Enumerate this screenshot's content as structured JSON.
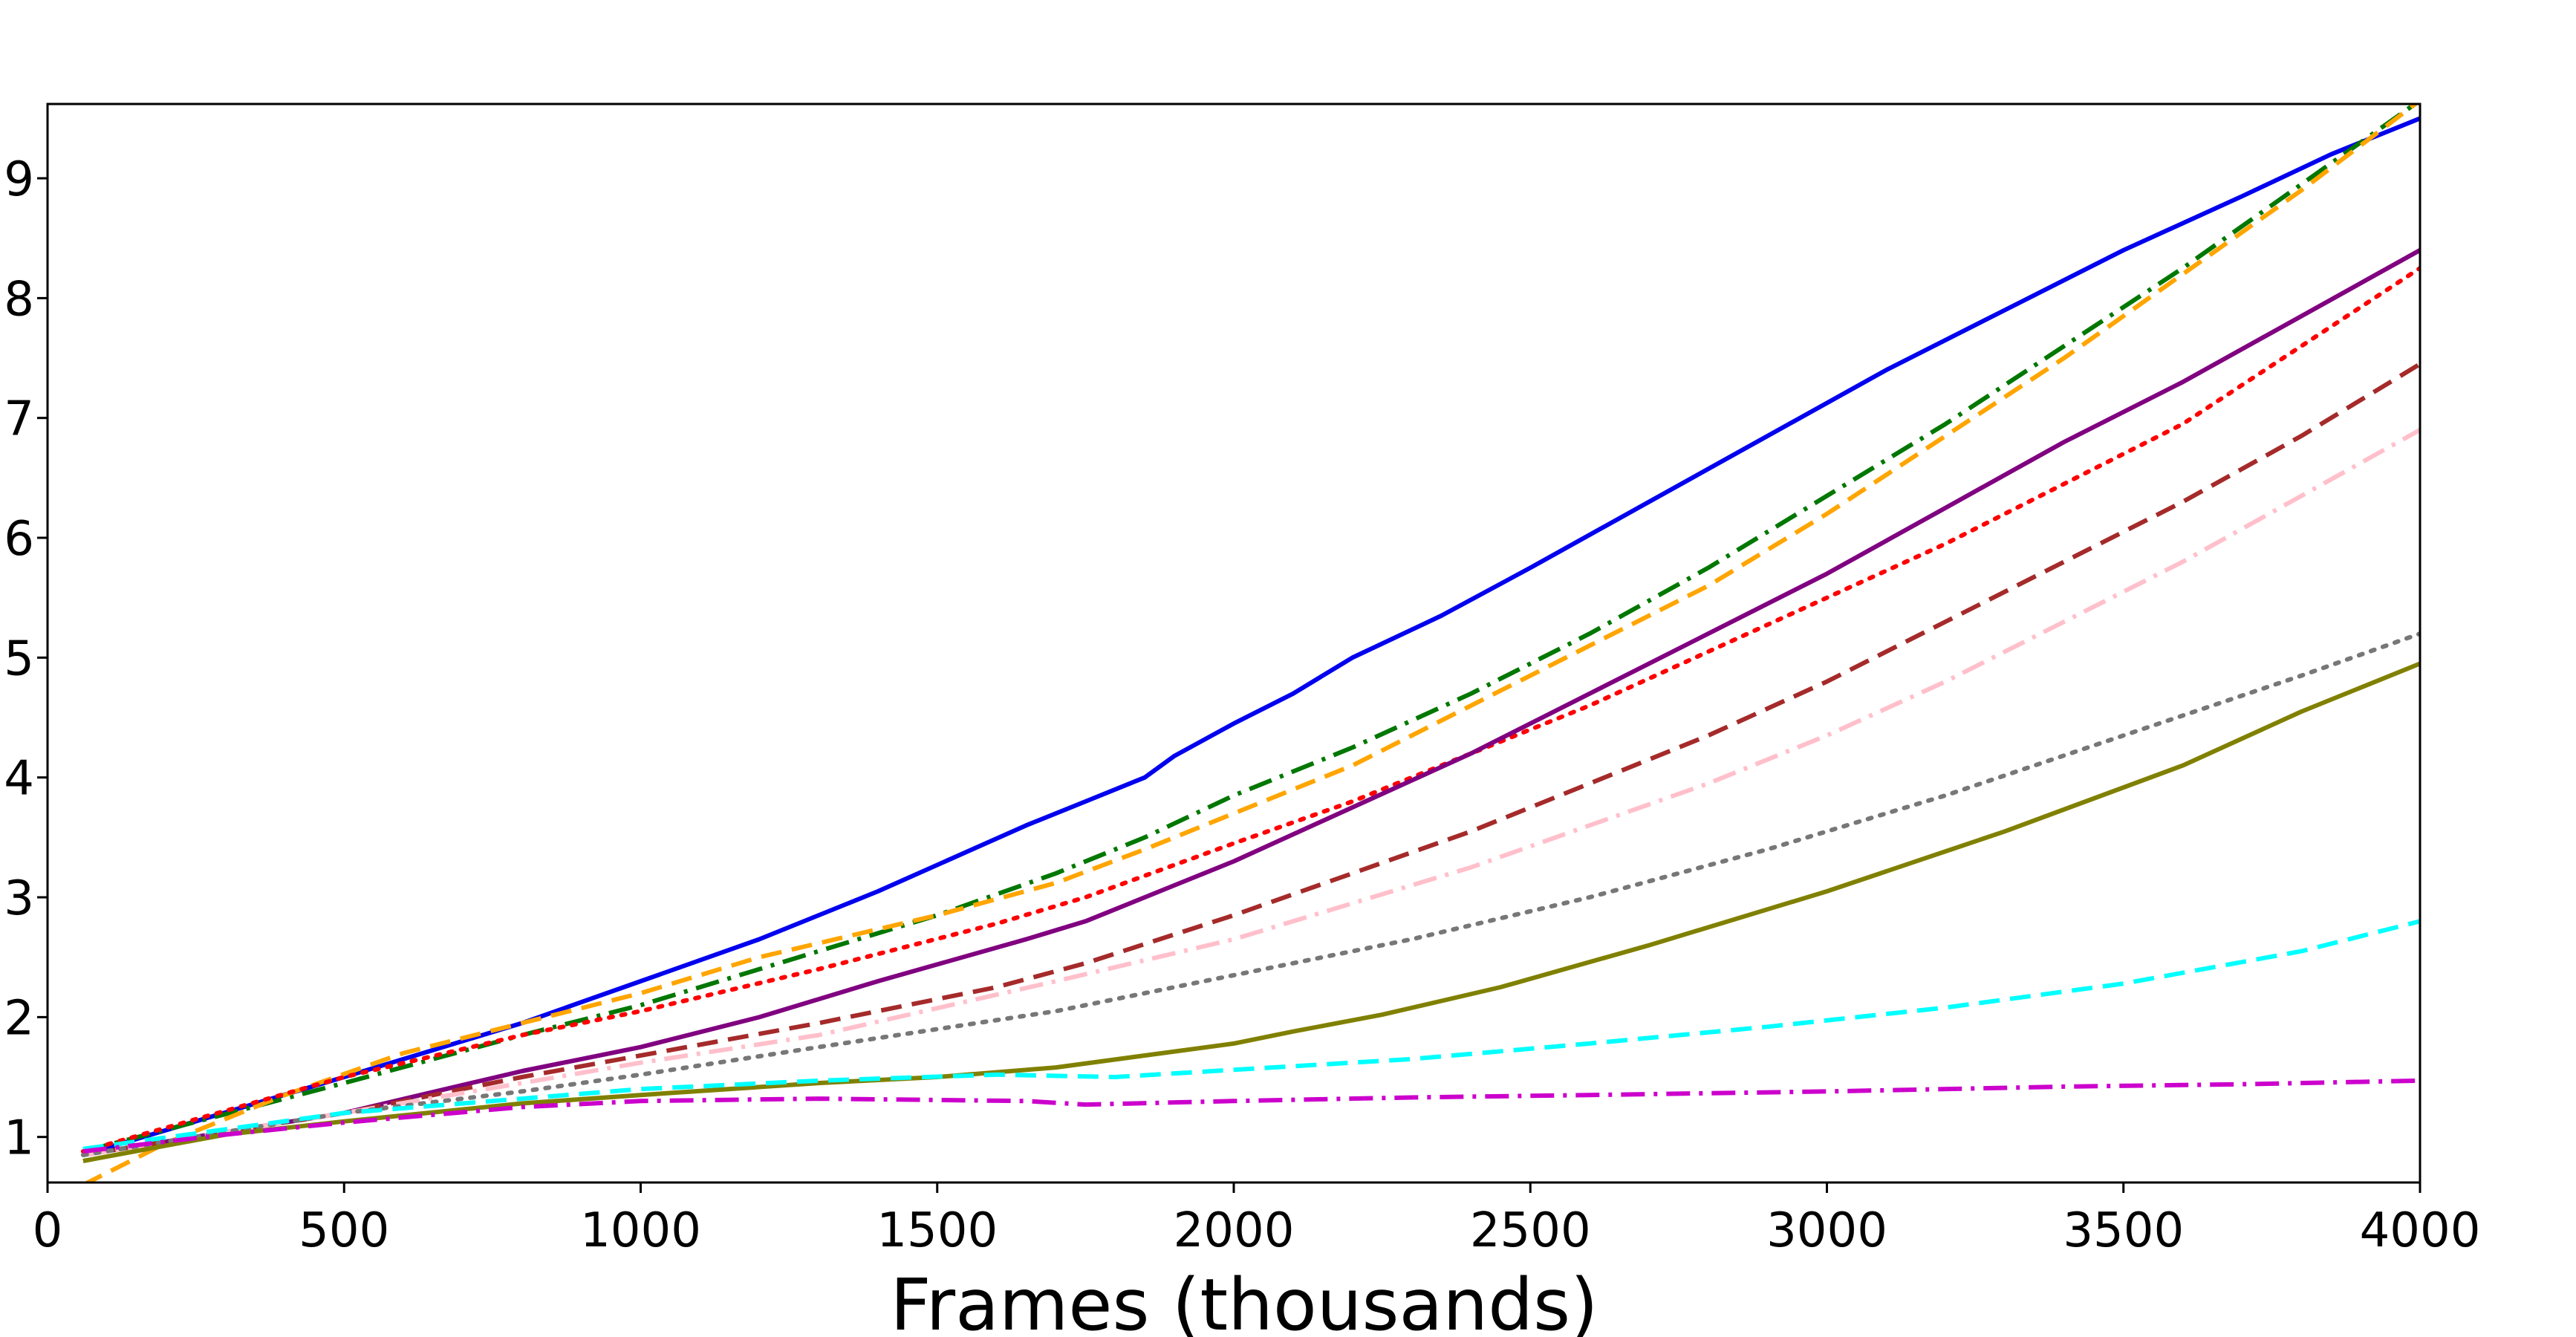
{
  "chart_data": {
    "type": "line",
    "title": "",
    "xlabel": "Frames (thousands)",
    "ylabel": "",
    "xlim": [
      0,
      4000
    ],
    "ylim": [
      0.62,
      9.62
    ],
    "grid": false,
    "legend": "none",
    "xticks": [
      0,
      500,
      1000,
      1500,
      2000,
      2500,
      3000,
      3500,
      4000
    ],
    "xtick_labels": [
      "0",
      "500",
      "1000",
      "1500",
      "2000",
      "2500",
      "3000",
      "3500",
      "4000"
    ],
    "yticks": [
      1,
      2,
      3,
      4,
      5,
      6,
      7,
      8,
      9
    ],
    "ytick_labels": [
      "1",
      "2",
      "3",
      "4",
      "5",
      "6",
      "7",
      "8",
      "9"
    ],
    "series": [
      {
        "color": "#0000ee",
        "dash": "solid",
        "x": [
          60,
          500,
          800,
          1000,
          1200,
          1400,
          1650,
          1750,
          1850,
          1900,
          2000,
          2100,
          2200,
          2350,
          2500,
          2700,
          2900,
          3100,
          3300,
          3500,
          3700,
          3850,
          4000
        ],
        "y": [
          0.85,
          1.5,
          1.95,
          2.3,
          2.65,
          3.05,
          3.6,
          3.8,
          4.0,
          4.18,
          4.45,
          4.7,
          5.0,
          5.35,
          5.75,
          6.3,
          6.85,
          7.4,
          7.9,
          8.4,
          8.85,
          9.2,
          9.5
        ]
      },
      {
        "color": "#007700",
        "dash": "dashdot",
        "x": [
          60,
          500,
          800,
          1000,
          1200,
          1500,
          1700,
          1850,
          2000,
          2200,
          2400,
          2600,
          2800,
          3000,
          3200,
          3400,
          3600,
          3800,
          4000
        ],
        "y": [
          0.88,
          1.45,
          1.85,
          2.1,
          2.4,
          2.85,
          3.2,
          3.5,
          3.85,
          4.25,
          4.7,
          5.2,
          5.75,
          6.35,
          6.95,
          7.6,
          8.25,
          8.95,
          9.65
        ]
      },
      {
        "color": "#ffa500",
        "dash": "dashed",
        "x": [
          60,
          200,
          400,
          600,
          800,
          1000,
          1200,
          1500,
          1700,
          1850,
          2000,
          2200,
          2400,
          2600,
          2800,
          3000,
          3200,
          3400,
          3600,
          3800,
          4000
        ],
        "y": [
          0.6,
          0.95,
          1.35,
          1.7,
          1.95,
          2.2,
          2.5,
          2.85,
          3.12,
          3.4,
          3.7,
          4.1,
          4.6,
          5.1,
          5.6,
          6.2,
          6.85,
          7.5,
          8.2,
          8.9,
          9.65
        ]
      },
      {
        "color": "#ff0000",
        "dash": "dotted",
        "x": [
          60,
          500,
          800,
          1000,
          1300,
          1600,
          1750,
          2000,
          2200,
          2400,
          2600,
          2800,
          3000,
          3200,
          3400,
          3600,
          3800,
          4000
        ],
        "y": [
          0.88,
          1.5,
          1.85,
          2.05,
          2.4,
          2.78,
          3.0,
          3.45,
          3.8,
          4.2,
          4.6,
          5.05,
          5.5,
          5.95,
          6.45,
          6.95,
          7.6,
          8.25
        ]
      },
      {
        "color": "#800080",
        "dash": "solid",
        "x": [
          60,
          500,
          800,
          1000,
          1200,
          1400,
          1650,
          1750,
          1900,
          2000,
          2200,
          2400,
          2600,
          2800,
          3000,
          3200,
          3400,
          3600,
          3800,
          4000
        ],
        "y": [
          0.85,
          1.2,
          1.55,
          1.75,
          2.0,
          2.3,
          2.65,
          2.8,
          3.1,
          3.3,
          3.75,
          4.2,
          4.7,
          5.2,
          5.7,
          6.25,
          6.8,
          7.3,
          7.85,
          8.4
        ]
      },
      {
        "color": "#a52a2a",
        "dash": "dashed",
        "x": [
          60,
          500,
          800,
          1000,
          1300,
          1600,
          1750,
          2000,
          2200,
          2400,
          2600,
          2800,
          3000,
          3200,
          3400,
          3600,
          3800,
          4000
        ],
        "y": [
          0.85,
          1.2,
          1.5,
          1.68,
          1.95,
          2.25,
          2.45,
          2.85,
          3.2,
          3.55,
          3.95,
          4.35,
          4.8,
          5.3,
          5.8,
          6.3,
          6.85,
          7.45
        ]
      },
      {
        "color": "#ffc0cb",
        "dash": "dashdot",
        "x": [
          60,
          500,
          800,
          1000,
          1300,
          1700,
          2000,
          2200,
          2400,
          2600,
          2800,
          3000,
          3200,
          3400,
          3600,
          3800,
          4000
        ],
        "y": [
          0.85,
          1.2,
          1.45,
          1.62,
          1.85,
          2.3,
          2.65,
          2.95,
          3.25,
          3.6,
          3.95,
          4.35,
          4.8,
          5.3,
          5.8,
          6.35,
          6.9
        ]
      },
      {
        "color": "#777777",
        "dash": "dotted",
        "x": [
          60,
          500,
          800,
          1000,
          1300,
          1700,
          2000,
          2300,
          2600,
          2900,
          3200,
          3500,
          3800,
          4000
        ],
        "y": [
          0.85,
          1.2,
          1.38,
          1.52,
          1.75,
          2.05,
          2.35,
          2.65,
          3.0,
          3.4,
          3.85,
          4.35,
          4.85,
          5.2
        ]
      },
      {
        "color": "#808000",
        "dash": "solid",
        "x": [
          60,
          300,
          500,
          800,
          1000,
          1300,
          1500,
          1700,
          1850,
          2000,
          2100,
          2250,
          2450,
          2700,
          3000,
          3300,
          3600,
          3800,
          4000
        ],
        "y": [
          0.8,
          1.02,
          1.13,
          1.28,
          1.35,
          1.45,
          1.5,
          1.58,
          1.68,
          1.78,
          1.88,
          2.02,
          2.25,
          2.6,
          3.05,
          3.55,
          4.1,
          4.55,
          4.95
        ]
      },
      {
        "color": "#00ffff",
        "dash": "dashed",
        "x": [
          60,
          500,
          800,
          1000,
          1300,
          1600,
          1800,
          2000,
          2300,
          2600,
          2900,
          3200,
          3500,
          3800,
          4000
        ],
        "y": [
          0.9,
          1.2,
          1.32,
          1.4,
          1.47,
          1.52,
          1.5,
          1.56,
          1.65,
          1.78,
          1.92,
          2.08,
          2.28,
          2.55,
          2.8
        ]
      },
      {
        "color": "#cc00cc",
        "dash": "dashdot",
        "x": [
          60,
          300,
          500,
          800,
          1000,
          1300,
          1650,
          1750,
          2000,
          2300,
          2600,
          3000,
          3400,
          3700,
          4000
        ],
        "y": [
          0.88,
          1.02,
          1.12,
          1.25,
          1.3,
          1.32,
          1.3,
          1.27,
          1.3,
          1.33,
          1.35,
          1.38,
          1.42,
          1.44,
          1.47
        ]
      }
    ]
  }
}
